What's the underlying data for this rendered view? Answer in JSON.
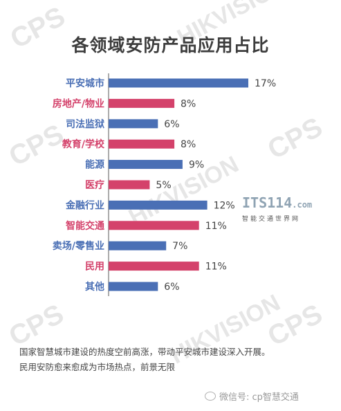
{
  "watermarks": [
    "CPS",
    "HIKVISION",
    "CPS",
    "CPS",
    "HIKVISION",
    "CPS",
    "HIKVISION",
    "CPS"
  ],
  "chart_data": {
    "type": "bar",
    "orientation": "horizontal",
    "title": "各领域安防产品应用占比",
    "categories": [
      "平安城市",
      "房地产/物业",
      "司法监狱",
      "教育/学校",
      "能源",
      "医疗",
      "金融行业",
      "智能交通",
      "卖场/零售业",
      "民用",
      "其他"
    ],
    "values": [
      17,
      8,
      6,
      8,
      9,
      5,
      12,
      11,
      7,
      11,
      6
    ],
    "value_labels": [
      "17%",
      "8%",
      "6%",
      "8%",
      "9%",
      "5%",
      "12%",
      "11%",
      "7%",
      "11%",
      "6%"
    ],
    "category_colors": [
      "#4a6fb5",
      "#d4426b",
      "#4a6fb5",
      "#d4426b",
      "#4a6fb5",
      "#d4426b",
      "#4a6fb5",
      "#d4426b",
      "#4a6fb5",
      "#d4426b",
      "#4a6fb5"
    ],
    "colors": {
      "blue": "#4a6fb5",
      "pink": "#d4426b",
      "axis": "#555555",
      "value_text": "#444444"
    },
    "xlim": [
      0,
      17
    ],
    "grid": false,
    "legend": "none"
  },
  "logo": {
    "main": "ITS114",
    "domain": ".com",
    "sub": "智能交通世界网"
  },
  "caption": {
    "line1": "国家智慧城市建设的热度空前高涨，带动平安城市建设深入开展。",
    "line2": "民用安防愈来愈成为市场热点，前景无限"
  },
  "wechat": {
    "text": "微信号: cp智慧交通"
  }
}
